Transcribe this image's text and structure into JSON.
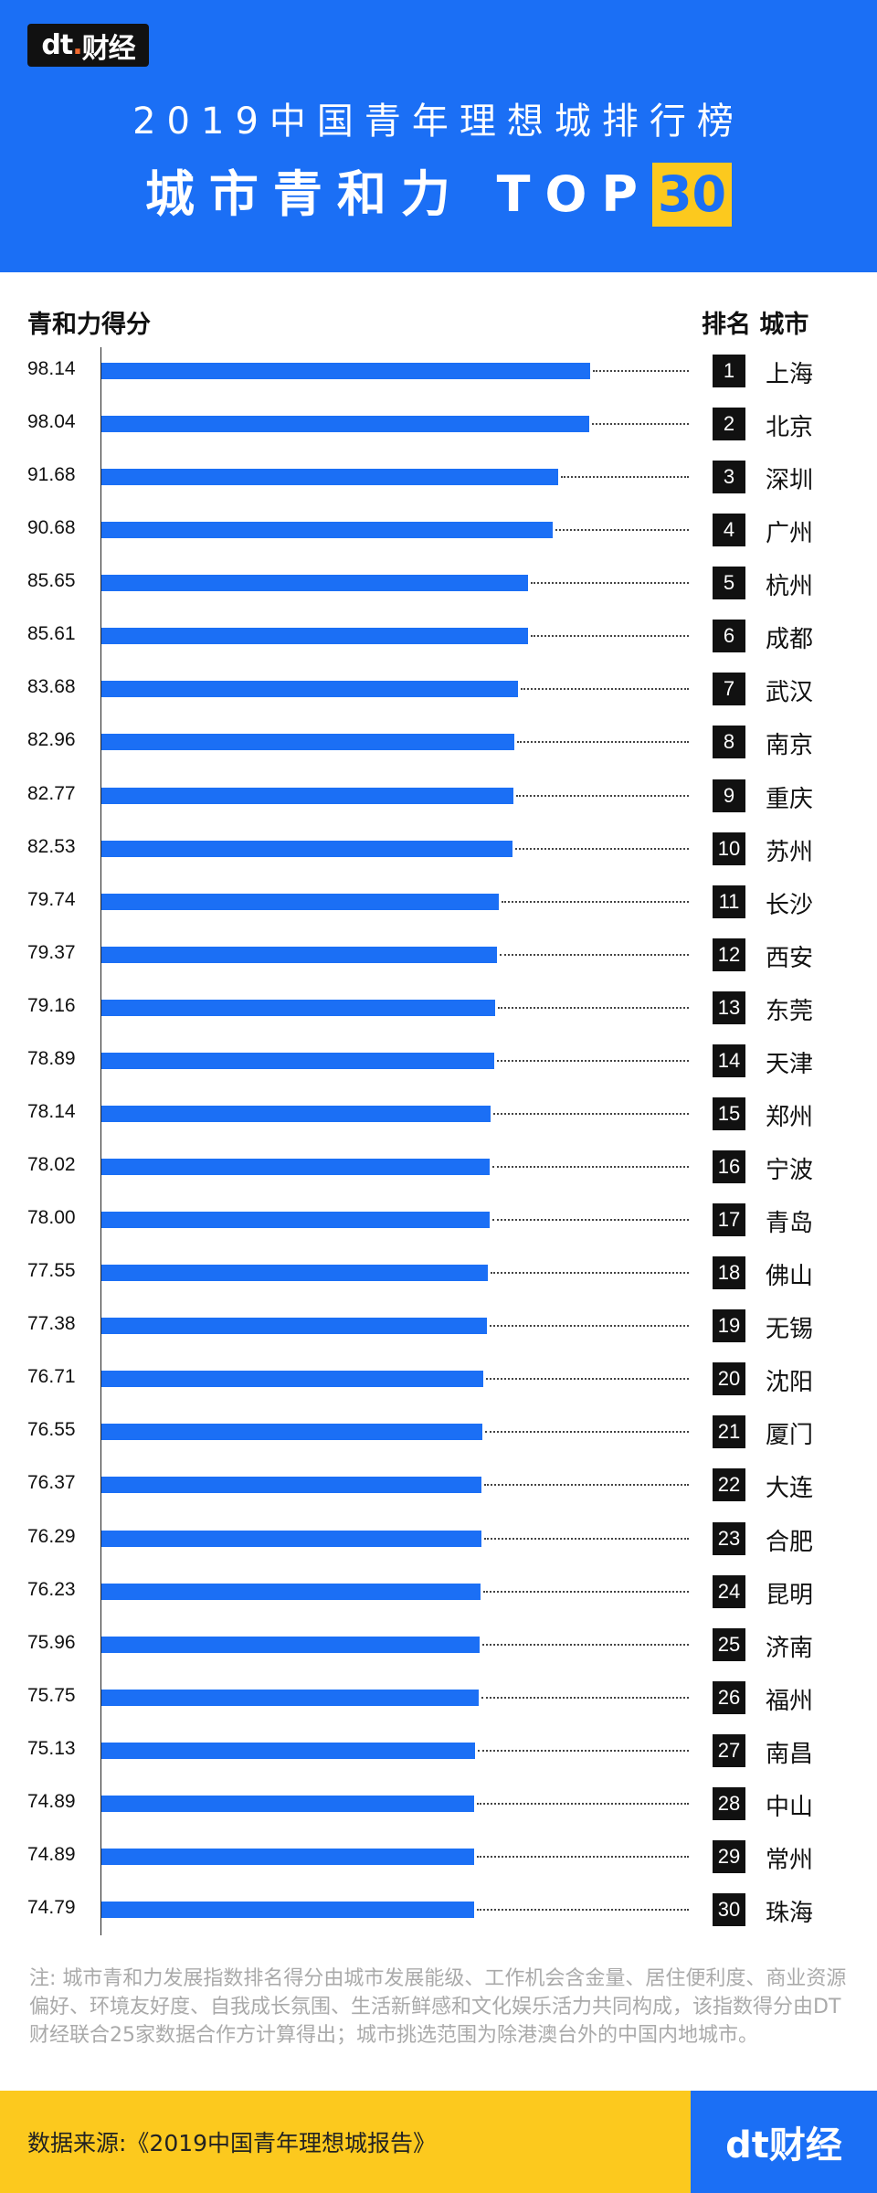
{
  "brand": {
    "logo_text": "dt财经"
  },
  "header": {
    "title": "2019中国青年理想城排行榜",
    "subtitle_prefix": "城市青和力 TOP",
    "subtitle_highlight": "30"
  },
  "colors": {
    "primary": "#1b6ff5",
    "accent": "#fcc91e",
    "rank_box": "#111111"
  },
  "chart_data": {
    "type": "bar",
    "orientation": "horizontal",
    "xlabel": "青和力得分",
    "right_header": "排名 城市",
    "categories": [
      "上海",
      "北京",
      "深圳",
      "广州",
      "杭州",
      "成都",
      "武汉",
      "南京",
      "重庆",
      "苏州",
      "长沙",
      "西安",
      "东莞",
      "天津",
      "郑州",
      "宁波",
      "青岛",
      "佛山",
      "无锡",
      "沈阳",
      "厦门",
      "大连",
      "合肥",
      "昆明",
      "济南",
      "福州",
      "南昌",
      "中山",
      "常州",
      "珠海"
    ],
    "ranks": [
      1,
      2,
      3,
      4,
      5,
      6,
      7,
      8,
      9,
      10,
      11,
      12,
      13,
      14,
      15,
      16,
      17,
      18,
      19,
      20,
      21,
      22,
      23,
      24,
      25,
      26,
      27,
      28,
      29,
      30
    ],
    "values": [
      "98.14",
      "98.04",
      "91.68",
      "90.68",
      "85.65",
      "85.61",
      "83.68",
      "82.96",
      "82.77",
      "82.53",
      "79.74",
      "79.37",
      "79.16",
      "78.89",
      "78.14",
      "78.02",
      "78.00",
      "77.55",
      "77.38",
      "76.71",
      "76.55",
      "76.37",
      "76.29",
      "76.23",
      "75.96",
      "75.75",
      "75.13",
      "74.89",
      "74.89",
      "74.79"
    ],
    "xlim": [
      0,
      100
    ],
    "grid": false
  },
  "note": "注: 城市青和力发展指数排名得分由城市发展能级、工作机会含金量、居住便利度、商业资源偏好、环境友好度、自我成长氛围、生活新鲜感和文化娱乐活力共同构成，该指数得分由DT财经联合25家数据合作方计算得出；城市挑选范围为除港澳台外的中国内地城市。",
  "footer": {
    "source": "数据来源:《2019中国青年理想城报告》",
    "logo_text": "dt财经"
  }
}
